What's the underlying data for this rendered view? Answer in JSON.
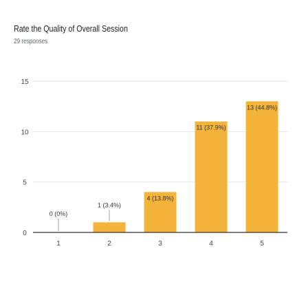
{
  "header": {
    "title": "Rate the Quality of Overall Session",
    "subtitle": "29 responses"
  },
  "chart_data": {
    "type": "bar",
    "categories": [
      "1",
      "2",
      "3",
      "4",
      "5"
    ],
    "values": [
      0,
      1,
      4,
      11,
      13
    ],
    "data_labels": [
      "0 (0%)",
      "1 (3.4%)",
      "4 (13.8%)",
      "11 (37.9%)",
      "13 (44.8%)"
    ],
    "y_ticks": [
      "0",
      "5",
      "10",
      "15"
    ],
    "ylim": [
      0,
      15
    ],
    "grid": true,
    "colors": {
      "bar": "#F4B33B",
      "grid": "#e6e6e6",
      "axis": "#333333"
    }
  }
}
